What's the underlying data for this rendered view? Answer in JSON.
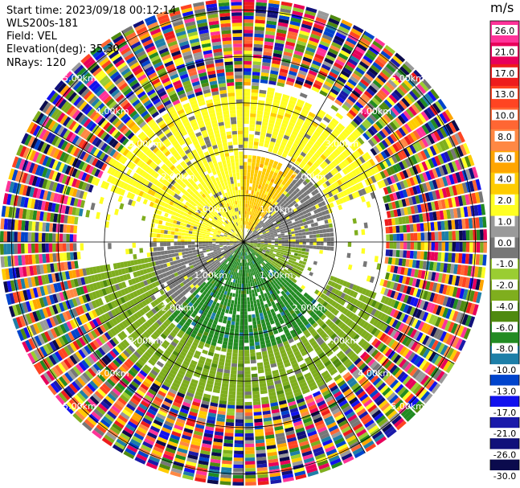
{
  "header": {
    "start_time": "Start time: 2023/09/18 00:12:14",
    "instrument": "WLS200s-181",
    "field": "Field: VEL",
    "elevation": "Elevation(deg): 35.30",
    "nrays": "NRays: 120"
  },
  "chart_data": {
    "type": "heatmap",
    "projection": "polar-ppi",
    "title": "",
    "range_rings_km": [
      1,
      2,
      3,
      4,
      5
    ],
    "range_ring_labels": [
      "1.00km",
      "2.00km",
      "3.00km",
      "4.00km",
      "5.00km"
    ],
    "max_range_km": 5.25,
    "n_rays": 120,
    "azimuth_spokes_deg": [
      0,
      30,
      60,
      90,
      120,
      150,
      180,
      210,
      240,
      270,
      300,
      330
    ],
    "colorbar": {
      "unit": "m/s",
      "tick_labels": [
        "26.0",
        "21.0",
        "17.0",
        "13.0",
        "10.0",
        "8.0",
        "6.0",
        "4.0",
        "2.0",
        "1.0",
        "0.0",
        "-1.0",
        "-2.0",
        "-4.0",
        "-6.0",
        "-8.0",
        "-10.0",
        "-13.0",
        "-17.0",
        "-21.0",
        "-26.0",
        "-30.0"
      ],
      "colors": [
        "#ff3399",
        "#e8005a",
        "#ee1c1c",
        "#ff4422",
        "#ff6633",
        "#ff8844",
        "#ffa500",
        "#ffcc00",
        "#ffff22",
        "#9a9a9a",
        "#777777",
        "#9acd32",
        "#7fae1e",
        "#4f8a10",
        "#228b22",
        "#1e7fa8",
        "#0044cc",
        "#1111ee",
        "#1a1aaa",
        "#10107a",
        "#0b0b4d"
      ]
    },
    "regions": [
      {
        "name": "inner-northwest",
        "az_deg": [
          270,
          360
        ],
        "range_km": [
          0,
          2.0
        ],
        "value_ms": 2.0
      },
      {
        "name": "inner-north",
        "az_deg": [
          320,
          40
        ],
        "range_km": [
          0.3,
          1.8
        ],
        "value_ms": 4.0
      },
      {
        "name": "inner-northeast",
        "az_deg": [
          30,
          95
        ],
        "range_km": [
          0,
          1.9
        ],
        "value_ms": 0.0
      },
      {
        "name": "inner-east-near",
        "az_deg": [
          85,
          130
        ],
        "range_km": [
          0,
          1.4
        ],
        "value_ms": -2.0
      },
      {
        "name": "inner-south",
        "az_deg": [
          130,
          225
        ],
        "range_km": [
          0,
          2.3
        ],
        "value_ms": -6.0
      },
      {
        "name": "inner-southwest",
        "az_deg": [
          225,
          275
        ],
        "range_km": [
          0,
          2.0
        ],
        "value_ms": 0.0
      },
      {
        "name": "outer-north",
        "az_deg": [
          290,
          70
        ],
        "range_km": [
          2.0,
          3.3
        ],
        "value_ms": 2.0
      },
      {
        "name": "outer-south",
        "az_deg": [
          110,
          260
        ],
        "range_km": [
          2.0,
          3.5
        ],
        "value_ms": -2.0
      },
      {
        "name": "noise-ring",
        "az_deg": [
          0,
          360
        ],
        "range_km": [
          3.3,
          5.25
        ],
        "value_ms": "noise"
      }
    ]
  }
}
